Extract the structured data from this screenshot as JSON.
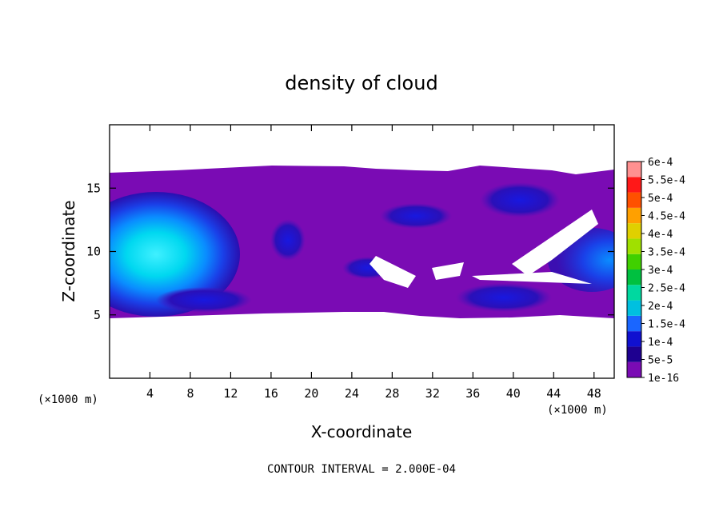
{
  "chart_data": {
    "type": "heatmap",
    "title": "density of cloud",
    "xlabel": "X-coordinate",
    "ylabel": "Z-coordinate",
    "x_unit": "(×1000 m)",
    "y_unit": "(×1000 m)",
    "xlim": [
      0,
      50
    ],
    "ylim": [
      0,
      20
    ],
    "x_ticks": [
      4,
      8,
      12,
      16,
      20,
      24,
      28,
      32,
      36,
      40,
      44,
      48
    ],
    "y_ticks": [
      5,
      10,
      15
    ],
    "colorbar": {
      "labels": [
        "1e-16",
        "5e-5",
        "1e-4",
        "1.5e-4",
        "2e-4",
        "2.5e-4",
        "3e-4",
        "3.5e-4",
        "4e-4",
        "4.5e-4",
        "5e-4",
        "5.5e-4",
        "6e-4"
      ],
      "colors": [
        "#7a0bb4",
        "#1e0090",
        "#1010d0",
        "#1a66ff",
        "#00c0e0",
        "#00d8a0",
        "#00c040",
        "#40d000",
        "#a0e000",
        "#e0d000",
        "#ffa000",
        "#ff5000",
        "#ff1818",
        "#ff9090"
      ]
    },
    "contour_interval_label": "CONTOUR INTERVAL = 2.000E-04"
  }
}
